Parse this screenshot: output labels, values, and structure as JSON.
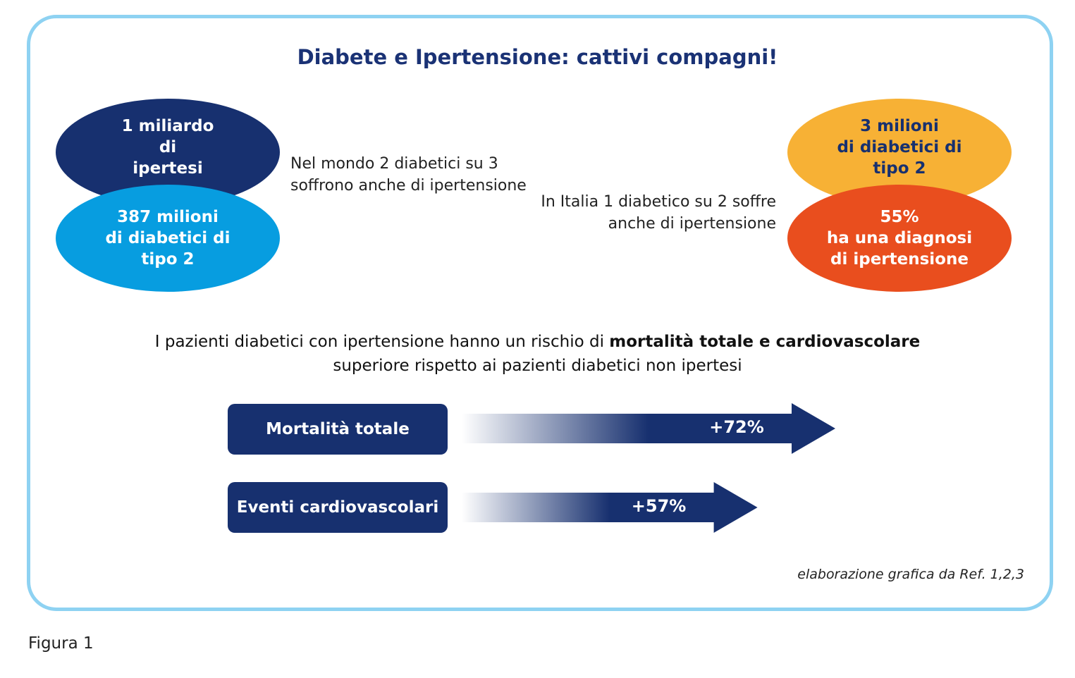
{
  "title": "Diabete e Ipertensione: cattivi compagni!",
  "world": {
    "top_ellipse": "1 miliardo\ndi\nipertesi",
    "bottom_ellipse": "387 milioni\ndi diabetici di\ntipo 2",
    "note": "Nel mondo 2 diabetici su 3 soffrono anche di ipertensione"
  },
  "italy": {
    "top_ellipse": "3 milioni\ndi diabetici di\ntipo 2",
    "bottom_ellipse": "55%\nha una diagnosi\ndi ipertensione",
    "note": "In Italia 1 diabetico su 2 soffre anche di ipertensione"
  },
  "risk": {
    "before": "I pazienti diabetici con ipertensione hanno un rischio di ",
    "bold": "mortalità totale e cardiovascolare",
    "after": " superiore rispetto ai pazienti diabetici non ipertesi"
  },
  "bars": [
    {
      "label": "Mortalità totale",
      "value_label": "+72%",
      "value": 72
    },
    {
      "label": "Eventi cardiovascolari",
      "value_label": "+57%",
      "value": 57
    }
  ],
  "source": "elaborazione grafica da Ref. 1,2,3",
  "figure_label": "Figura 1",
  "colors": {
    "navy": "#17306f",
    "sky": "#079de0",
    "amber": "#f7b135",
    "orange": "#e94e1e",
    "frame": "#8ed2f2"
  }
}
